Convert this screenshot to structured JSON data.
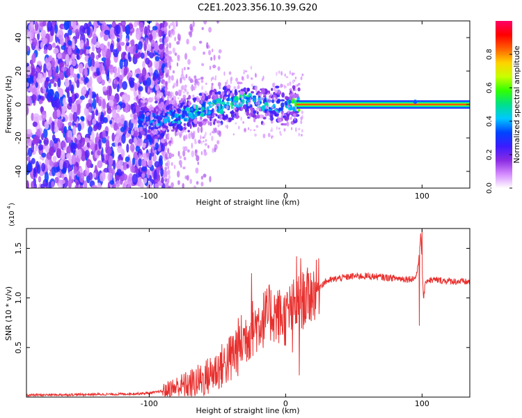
{
  "title": "C2E1.2023.356.10.39.G20",
  "chart_data": [
    {
      "type": "heatmap",
      "xlabel": "Height of straight line (km)",
      "ylabel": "Frequency (Hz)",
      "xlim": [
        -190,
        135
      ],
      "ylim": [
        -50,
        50
      ],
      "xticks": [
        -100,
        0,
        100
      ],
      "yticks": [
        -40,
        -20,
        0,
        20,
        40
      ],
      "colorbar": {
        "label": "Normalized spectral amplitude",
        "range": [
          0,
          1
        ],
        "ticks": [
          0.0,
          0.2,
          0.4,
          0.6,
          0.8
        ],
        "tick_labels": [
          "0.0",
          "0.2",
          "0.4",
          "0.6",
          "0.8"
        ],
        "colors": [
          "#ffffff",
          "#d58bff",
          "#8a2be2",
          "#3b1cff",
          "#0044ff",
          "#00c8ff",
          "#00e08a",
          "#30ff00",
          "#c8ff00",
          "#ffd200",
          "#ff6000",
          "#ff0000",
          "#ff0066"
        ]
      },
      "noise_region_x": [
        -190,
        -88
      ],
      "ridge": [
        {
          "x": -107,
          "y": -11,
          "amp": 0.35
        },
        {
          "x": -95,
          "y": -9,
          "amp": 0.4
        },
        {
          "x": -80,
          "y": -7,
          "amp": 0.45
        },
        {
          "x": -65,
          "y": -4,
          "amp": 0.5
        },
        {
          "x": -50,
          "y": -1,
          "amp": 0.5
        },
        {
          "x": -38,
          "y": 1,
          "amp": 0.55
        },
        {
          "x": -30,
          "y": 3,
          "amp": 0.55
        },
        {
          "x": -20,
          "y": 1,
          "amp": 0.5
        },
        {
          "x": -10,
          "y": 0,
          "amp": 0.45
        },
        {
          "x": 0,
          "y": -1,
          "amp": 0.45
        },
        {
          "x": 10,
          "y": 0,
          "amp": 0.7
        },
        {
          "x": 30,
          "y": 0,
          "amp": 0.85
        },
        {
          "x": 95,
          "y": 0,
          "amp": 0.9
        },
        {
          "x": 135,
          "y": 0,
          "amp": 0.9
        }
      ],
      "ridge_band_start_x": 8
    },
    {
      "type": "line",
      "xlabel": "Height of straight line (km)",
      "ylabel": "SNR (10 * v/v)",
      "y_scale_label": "(x10",
      "y_scale_exp": "4",
      "xlim": [
        -190,
        135
      ],
      "ylim": [
        0,
        1.7
      ],
      "xticks": [
        -100,
        0,
        100
      ],
      "yticks": [
        0.5,
        1.0,
        1.5
      ],
      "ytick_labels": [
        "0.5",
        "1.0",
        "1.5"
      ],
      "color": "#e8302e",
      "series": [
        {
          "x": [
            -190,
            -120,
            -100,
            -90,
            -80,
            -70,
            -60,
            -50,
            -45,
            -40,
            -35,
            -30,
            -25,
            -20,
            -15,
            -10,
            -5,
            0,
            5,
            10,
            15,
            20,
            25,
            30,
            40,
            50,
            60,
            70,
            80,
            90,
            95,
            97,
            99,
            101,
            103,
            110,
            120,
            135
          ],
          "y": [
            0.02,
            0.03,
            0.04,
            0.06,
            0.1,
            0.13,
            0.18,
            0.28,
            0.33,
            0.4,
            0.5,
            0.6,
            0.68,
            0.75,
            0.8,
            0.85,
            0.82,
            0.8,
            0.9,
            0.95,
            1.0,
            1.05,
            1.12,
            1.17,
            1.2,
            1.22,
            1.22,
            1.21,
            1.2,
            1.19,
            1.2,
            1.3,
            1.65,
            1.0,
            1.18,
            1.18,
            1.17,
            1.16
          ]
        }
      ],
      "spikes": [
        {
          "x": -25,
          "y": 1.25
        },
        {
          "x": -12,
          "y": 1.13
        },
        {
          "x": 8,
          "y": 1.42
        },
        {
          "x": 11,
          "y": 1.4
        },
        {
          "x": 99,
          "y": 1.65
        },
        {
          "x": 100,
          "y": 1.69
        }
      ],
      "dips": [
        {
          "x": 5,
          "y": 0.45
        },
        {
          "x": 10,
          "y": 0.22
        },
        {
          "x": 98,
          "y": 0.72
        }
      ]
    }
  ]
}
